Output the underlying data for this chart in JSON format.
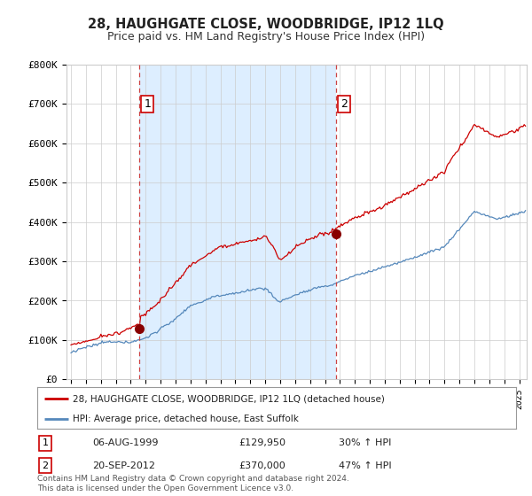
{
  "title": "28, HAUGHGATE CLOSE, WOODBRIDGE, IP12 1LQ",
  "subtitle": "Price paid vs. HM Land Registry's House Price Index (HPI)",
  "title_fontsize": 10.5,
  "subtitle_fontsize": 9,
  "ylim": [
    0,
    800000
  ],
  "yticks": [
    0,
    100000,
    200000,
    300000,
    400000,
    500000,
    600000,
    700000,
    800000
  ],
  "ytick_labels": [
    "£0",
    "£100K",
    "£200K",
    "£300K",
    "£400K",
    "£500K",
    "£600K",
    "£700K",
    "£800K"
  ],
  "xlim_start": 1994.7,
  "xlim_end": 2025.5,
  "sale1_year": 1999.59,
  "sale1_price": 129950,
  "sale1_label": "1",
  "sale1_date": "06-AUG-1999",
  "sale1_price_str": "£129,950",
  "sale1_hpi_str": "30% ↑ HPI",
  "sale2_year": 2012.72,
  "sale2_price": 370000,
  "sale2_label": "2",
  "sale2_date": "20-SEP-2012",
  "sale2_price_str": "£370,000",
  "sale2_hpi_str": "47% ↑ HPI",
  "red_line_color": "#cc0000",
  "blue_line_color": "#5588bb",
  "grid_color": "#cccccc",
  "shade_color": "#ddeeff",
  "background_color": "#ffffff",
  "label_box_color": "#cc0000",
  "label_text_color": "#000000",
  "legend1": "28, HAUGHGATE CLOSE, WOODBRIDGE, IP12 1LQ (detached house)",
  "legend2": "HPI: Average price, detached house, East Suffolk",
  "footer": "Contains HM Land Registry data © Crown copyright and database right 2024.\nThis data is licensed under the Open Government Licence v3.0."
}
